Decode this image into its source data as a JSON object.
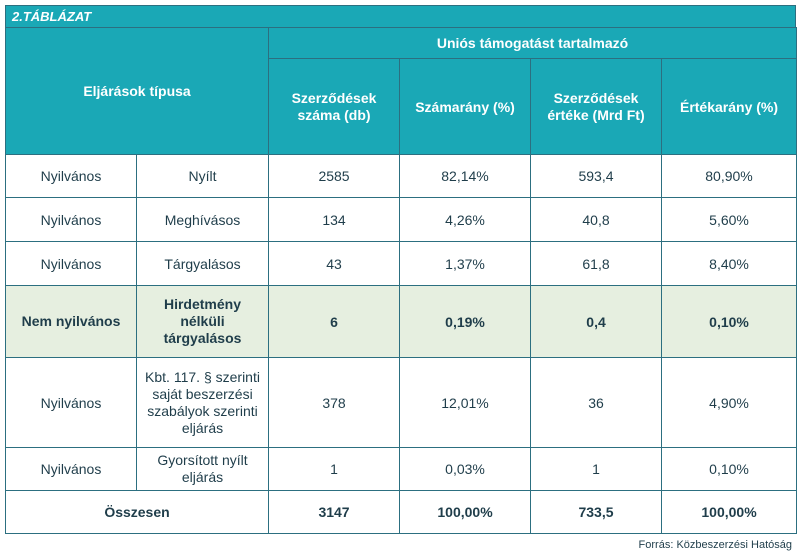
{
  "table_title": "2.TÁBLÁZAT",
  "header": {
    "type_label": "Eljárások típusa",
    "group_label": "Uniós támogatást tartalmazó",
    "columns": [
      "Szerződések száma (db)",
      "Számarány (%)",
      "Szerződések értéke (Mrd Ft)",
      "Értékarány (%)"
    ]
  },
  "rows": [
    {
      "category": "Nyilvános",
      "procedure": "Nyílt",
      "count": "2585",
      "count_share": "82,14%",
      "value": "593,4",
      "value_share": "80,90%"
    },
    {
      "category": "Nyilvános",
      "procedure": "Meghívásos",
      "count": "134",
      "count_share": "4,26%",
      "value": "40,8",
      "value_share": "5,60%"
    },
    {
      "category": "Nyilvános",
      "procedure": "Tárgyalásos",
      "count": "43",
      "count_share": "1,37%",
      "value": "61,8",
      "value_share": "8,40%"
    },
    {
      "category": "Nem nyilvános",
      "procedure": "Hirdetmény nélküli tárgyalásos",
      "count": "6",
      "count_share": "0,19%",
      "value": "0,4",
      "value_share": "0,10%"
    },
    {
      "category": "Nyilvános",
      "procedure": "Kbt. 117. § szerinti saját beszerzési szabályok szerinti eljárás",
      "count": "378",
      "count_share": "12,01%",
      "value": "36",
      "value_share": "4,90%"
    },
    {
      "category": "Nyilvános",
      "procedure": "Gyorsított nyílt eljárás",
      "count": "1",
      "count_share": "0,03%",
      "value": "1",
      "value_share": "0,10%"
    }
  ],
  "total": {
    "label": "Összesen",
    "count": "3147",
    "count_share": "100,00%",
    "value": "733,5",
    "value_share": "100,00%"
  },
  "source": "Forrás: Közbeszerzési Hatóság",
  "colors": {
    "header_bg": "#1aa8b6",
    "border": "#2c6f80",
    "highlight_bg": "#e6efe0",
    "text": "#1f3d4a"
  }
}
